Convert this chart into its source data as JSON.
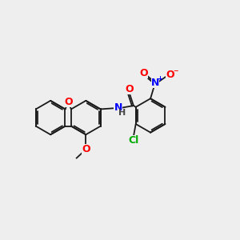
{
  "background_color": "#eeeeee",
  "atom_colors": {
    "C": "#1a1a1a",
    "O": "#ff0000",
    "N": "#0000ff",
    "Cl": "#00aa00",
    "H": "#444444"
  },
  "lw": 1.3,
  "fs": 9
}
